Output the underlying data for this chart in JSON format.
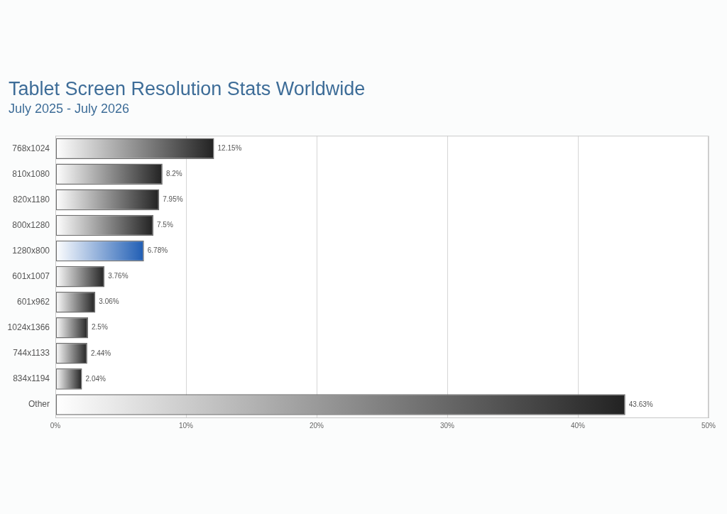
{
  "chart_data": {
    "type": "bar",
    "orientation": "horizontal",
    "title": "Tablet Screen Resolution Stats Worldwide",
    "subtitle": "July 2025 - July 2026",
    "categories": [
      "768x1024",
      "810x1080",
      "820x1180",
      "800x1280",
      "1280x800",
      "601x1007",
      "601x962",
      "1024x1366",
      "744x1133",
      "834x1194",
      "Other"
    ],
    "values": [
      12.15,
      8.2,
      7.95,
      7.5,
      6.78,
      3.76,
      3.06,
      2.5,
      2.44,
      2.04,
      43.63
    ],
    "colors": [
      "#222222",
      "#222222",
      "#222222",
      "#222222",
      "#1f5db4",
      "#222222",
      "#222222",
      "#222222",
      "#222222",
      "#222222",
      "#222222"
    ],
    "value_labels": [
      "12.15%",
      "8.2%",
      "7.95%",
      "7.5%",
      "6.78%",
      "3.76%",
      "3.06%",
      "2.5%",
      "2.44%",
      "2.04%",
      "43.63%"
    ],
    "xlim": [
      0,
      50
    ],
    "xticks": [
      {
        "value": 0,
        "label": "0%"
      },
      {
        "value": 10,
        "label": "10%"
      },
      {
        "value": 20,
        "label": "20%"
      },
      {
        "value": 30,
        "label": "30%"
      },
      {
        "value": 40,
        "label": "40%"
      },
      {
        "value": 50,
        "label": "50%"
      }
    ],
    "grid": "x",
    "legend": false
  }
}
